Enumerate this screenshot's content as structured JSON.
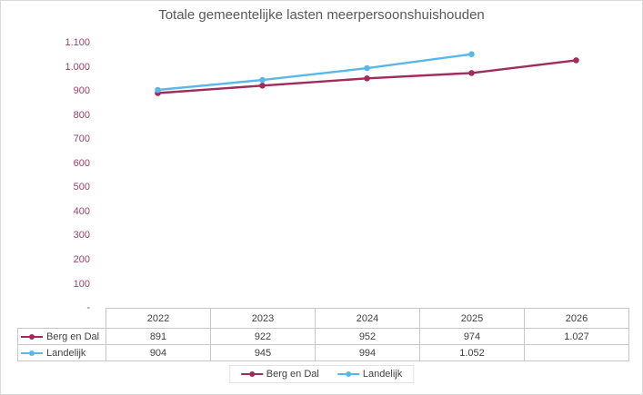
{
  "title": "Totale gemeentelijke lasten meerpersoonshuishouden",
  "colors": {
    "title": "#595959",
    "axis_label": "#9C4066",
    "table_text": "#404040",
    "border": "#D9D9D9",
    "grid": "#C6C6C6"
  },
  "chart_data": {
    "type": "line",
    "title": "Totale gemeentelijke lasten meerpersoonshuishouden",
    "xlabel": "",
    "ylabel": "",
    "categories": [
      "2022",
      "2023",
      "2024",
      "2025",
      "2026"
    ],
    "series": [
      {
        "name": "Berg en Dal",
        "color": "#A02B5C",
        "values": [
          891,
          922,
          952,
          974,
          1027
        ],
        "display": [
          "891",
          "922",
          "952",
          "974",
          "1.027"
        ]
      },
      {
        "name": "Landelijk",
        "color": "#5BB7E7",
        "values": [
          904,
          945,
          994,
          1052,
          null
        ],
        "display": [
          "904",
          "945",
          "994",
          "1.052",
          ""
        ]
      }
    ],
    "ylim": [
      0,
      1100
    ],
    "y_ticks": [
      "1.100",
      "1.000",
      "900",
      "800",
      "700",
      "600",
      "500",
      "400",
      "300",
      "200",
      "100",
      "-"
    ],
    "y_tick_values": [
      1100,
      1000,
      900,
      800,
      700,
      600,
      500,
      400,
      300,
      200,
      100,
      0
    ],
    "grid": false,
    "legend_position": "bottom",
    "marker": "circle"
  }
}
